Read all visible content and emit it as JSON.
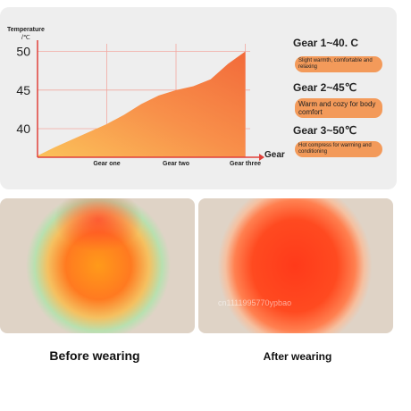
{
  "chart_data": {
    "type": "area",
    "ylabel": "Temperature",
    "yunit": "/℃",
    "xlabel": "Gear",
    "x": [
      0,
      0.25,
      0.5,
      0.75,
      1,
      1.25,
      1.5,
      1.75,
      2,
      2.25,
      2.5,
      2.75,
      3
    ],
    "series": [
      {
        "name": "Temperature",
        "color": "#f8904a",
        "values": [
          36.5,
          37.6,
          38.6,
          39.6,
          40.6,
          41.8,
          43.2,
          44.3,
          45,
          45.5,
          46.4,
          48.4,
          50
        ]
      }
    ],
    "xlim": [
      0,
      3.2
    ],
    "xticks": [
      {
        "value": 1,
        "label": "Gear one"
      },
      {
        "value": 2,
        "label": "Gear two"
      },
      {
        "value": 3,
        "label": "Gear three"
      }
    ],
    "ylim": [
      36.3,
      51
    ],
    "yticks": [
      40,
      45,
      50
    ],
    "grid": true
  },
  "gears": [
    {
      "title": "Gear 1~40. C",
      "desc": "Slight warmth, comfortable and relaxing"
    },
    {
      "title": "Gear 2~45℃",
      "desc": "Warm and cozy for body comfort"
    },
    {
      "title": "Gear 3~50℃",
      "desc": "Hot compress for warming and conditioning"
    }
  ],
  "panels": {
    "before": "Before wearing",
    "after": "After wearing",
    "watermark": "cn1111995770ypbao"
  }
}
